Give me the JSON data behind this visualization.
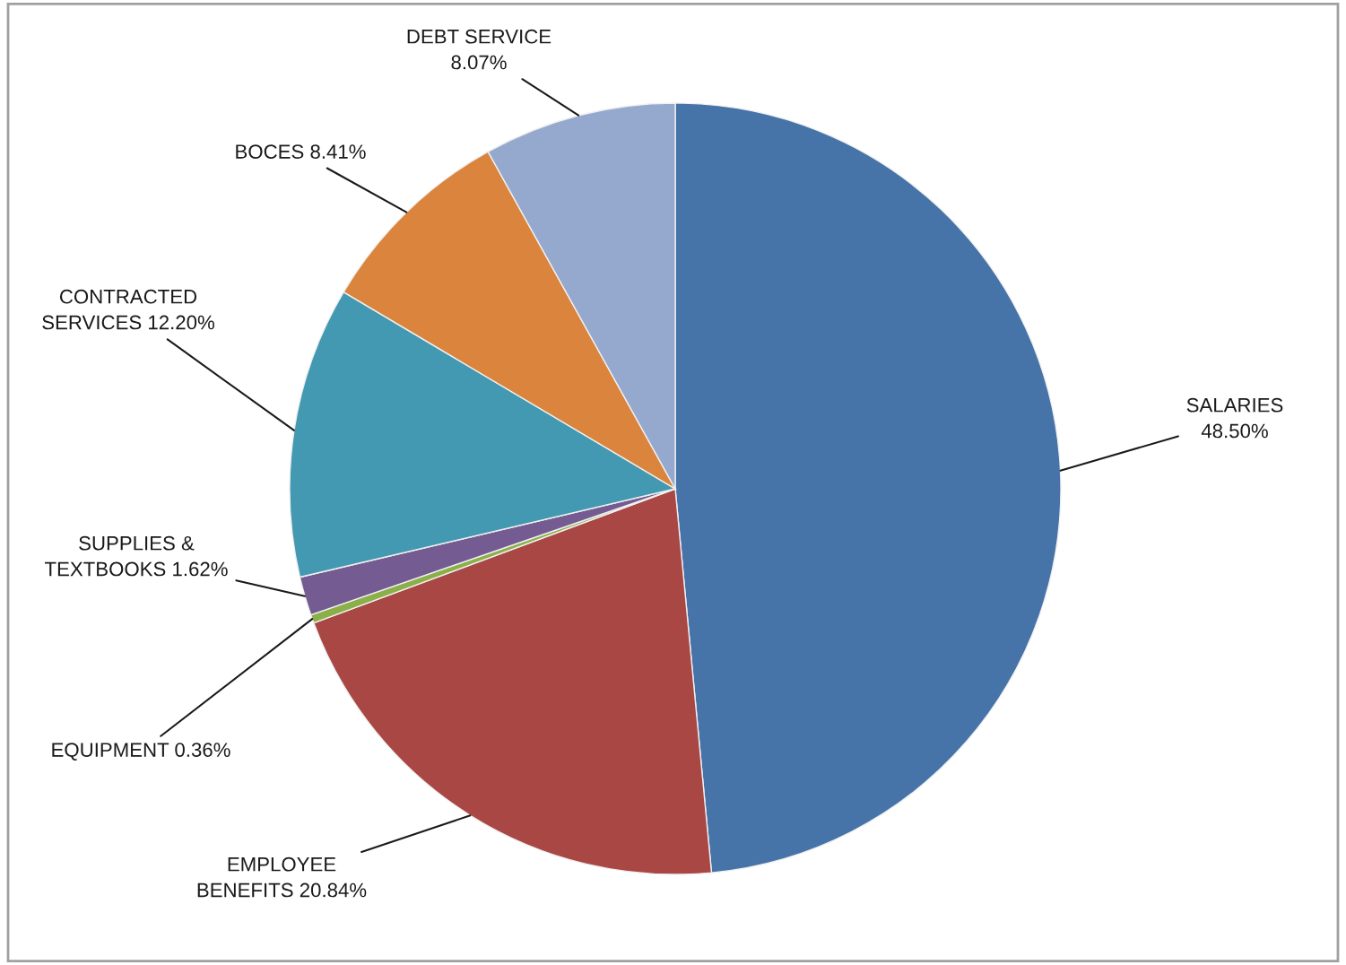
{
  "chart_data": {
    "type": "pie",
    "categories": [
      "SALARIES",
      "EMPLOYEE BENEFITS",
      "EQUIPMENT",
      "SUPPLIES & TEXTBOOKS",
      "CONTRACTED SERVICES",
      "BOCES",
      "DEBT SERVICE"
    ],
    "values": [
      48.5,
      20.84,
      0.36,
      1.62,
      12.2,
      8.41,
      8.07
    ],
    "value_labels": [
      "48.50%",
      "20.84%",
      "0.36%",
      "1.62%",
      "12.20%",
      "8.41%",
      "8.07%"
    ],
    "colors": [
      "#4673a8",
      "#a94744",
      "#8bb04a",
      "#745b91",
      "#4399b1",
      "#db843d",
      "#95a9cf"
    ]
  }
}
